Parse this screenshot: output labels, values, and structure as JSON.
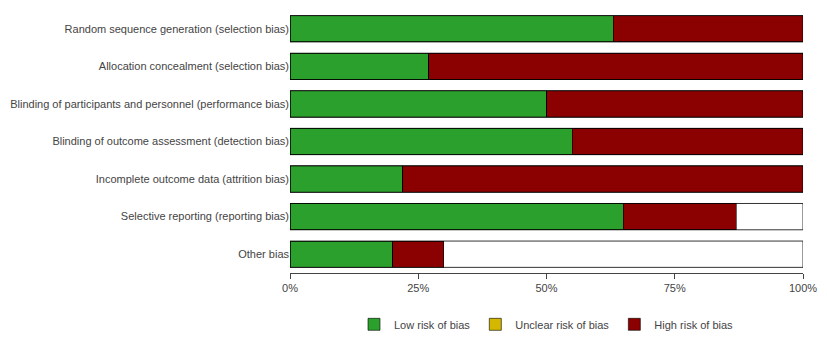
{
  "chart_data": {
    "type": "bar",
    "orientation": "horizontal",
    "stacked": true,
    "categories": [
      "Random sequence generation (selection bias)",
      "Allocation concealment (selection bias)",
      "Blinding of participants and personnel (performance bias)",
      "Blinding of outcome assessment (detection bias)",
      "Incomplete outcome data (attrition bias)",
      "Selective reporting (reporting bias)",
      "Other bias"
    ],
    "series": [
      {
        "name": "Low risk of bias",
        "color": "#2ca02c",
        "values": [
          63,
          27,
          50,
          55,
          22,
          65,
          20
        ]
      },
      {
        "name": "Unclear risk of bias",
        "color": "#d4b800",
        "values": [
          0,
          0,
          0,
          0,
          0,
          0,
          0
        ]
      },
      {
        "name": "High risk of bias",
        "color": "#8b0000",
        "values": [
          37,
          73,
          50,
          45,
          78,
          22,
          10
        ]
      }
    ],
    "xlim": [
      0,
      100
    ],
    "xticks": [
      {
        "value": 0,
        "label": "0%"
      },
      {
        "value": 25,
        "label": "25%"
      },
      {
        "value": 50,
        "label": "50%"
      },
      {
        "value": 75,
        "label": "75%"
      },
      {
        "value": 100,
        "label": "100%"
      }
    ],
    "grid": false,
    "legend": "bottom"
  }
}
